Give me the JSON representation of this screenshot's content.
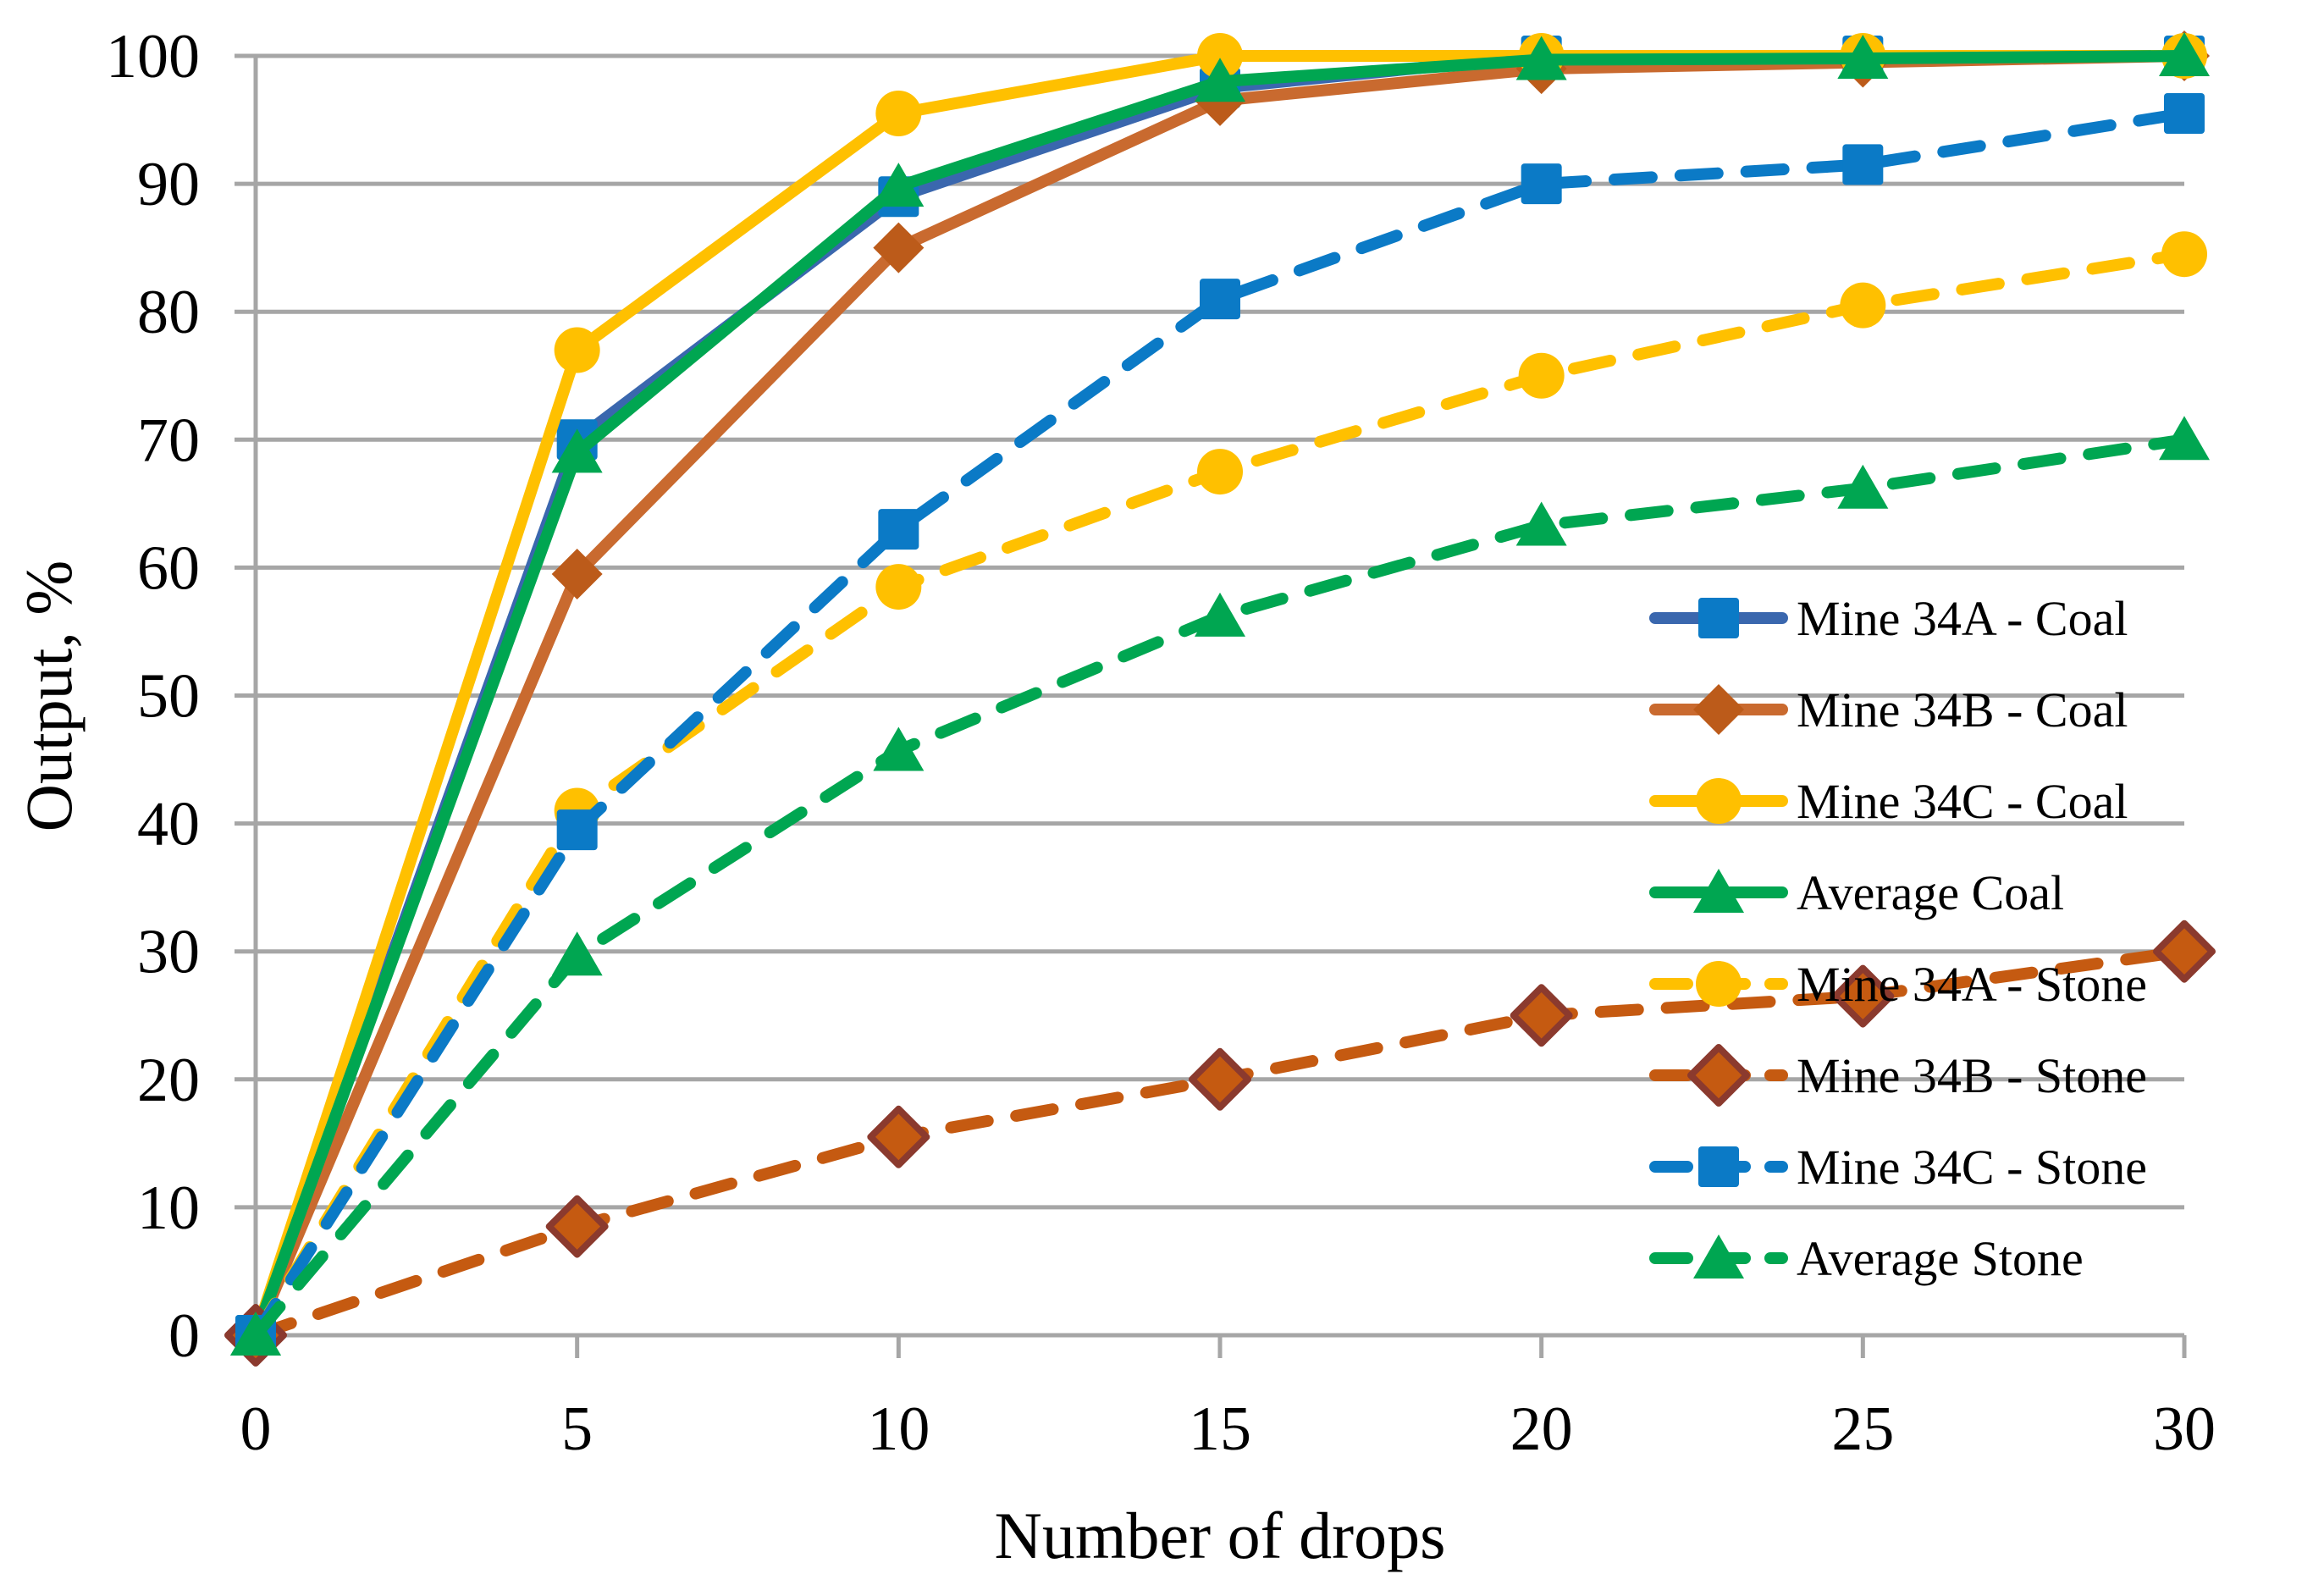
{
  "chart_data": {
    "type": "line",
    "title": "",
    "xlabel": "Number of drops",
    "ylabel": "Output, %",
    "x": [
      0,
      5,
      10,
      15,
      20,
      25,
      30
    ],
    "x_tick_labels": [
      "0",
      "5",
      "10",
      "15",
      "20",
      "25",
      "30"
    ],
    "y_ticks": [
      0,
      10,
      20,
      30,
      40,
      50,
      60,
      70,
      80,
      90,
      100
    ],
    "y_tick_labels": [
      "0",
      "10",
      "20",
      "30",
      "40",
      "50",
      "60",
      "70",
      "80",
      "90",
      "100"
    ],
    "xlim": [
      0,
      30
    ],
    "ylim": [
      0,
      100
    ],
    "grid": "horizontal",
    "gridline_color": "#A6A6A6",
    "axis_color": "#A6A6A6",
    "legend_position": "inside-right",
    "series": [
      {
        "name": "Mine 34A - Coal",
        "line_color": "#3A67AE",
        "dashed": false,
        "marker": "square",
        "marker_color": "#0B7AC6",
        "marker_stroke": "none",
        "values": [
          0,
          70,
          89,
          97.5,
          100,
          100,
          100
        ]
      },
      {
        "name": "Mine 34B - Coal",
        "line_color": "#C96A2F",
        "dashed": false,
        "marker": "diamond",
        "marker_color": "#BC5B1A",
        "marker_stroke": "none",
        "values": [
          0,
          59.5,
          85,
          96.5,
          99,
          99.5,
          100
        ]
      },
      {
        "name": "Mine 34C - Coal",
        "line_color": "#FFC000",
        "dashed": false,
        "marker": "circle",
        "marker_color": "#FFC000",
        "marker_stroke": "none",
        "values": [
          0,
          77,
          95.5,
          100,
          100,
          100,
          100
        ]
      },
      {
        "name": "Average Coal",
        "line_color": "#00A651",
        "dashed": false,
        "marker": "triangle",
        "marker_color": "#00A651",
        "marker_stroke": "none",
        "values": [
          0,
          69,
          89.8,
          98,
          99.7,
          99.8,
          100
        ]
      },
      {
        "name": "Mine 34A - Stone",
        "line_color": "#FFC000",
        "dashed": true,
        "marker": "circle",
        "marker_color": "#FFC000",
        "marker_stroke": "none",
        "values": [
          0,
          41,
          58.5,
          67.5,
          75,
          80.5,
          84.5
        ]
      },
      {
        "name": "Mine 34B - Stone",
        "line_color": "#C55A11",
        "dashed": true,
        "marker": "diamond",
        "marker_color": "#C55A11",
        "marker_stroke": "#8B3A2E",
        "values": [
          0,
          8.5,
          15.5,
          20,
          25,
          26.5,
          30
        ]
      },
      {
        "name": "Mine 34C - Stone",
        "line_color": "#0B7AC6",
        "dashed": true,
        "marker": "square",
        "marker_color": "#0B7AC6",
        "marker_stroke": "none",
        "values": [
          0,
          39.5,
          63,
          81,
          90,
          91.5,
          95.5
        ]
      },
      {
        "name": "Average Stone",
        "line_color": "#00A651",
        "dashed": true,
        "marker": "triangle",
        "marker_color": "#00A651",
        "marker_stroke": "none",
        "values": [
          0,
          29.7,
          45.7,
          56.2,
          63.3,
          66.2,
          70
        ]
      }
    ]
  }
}
